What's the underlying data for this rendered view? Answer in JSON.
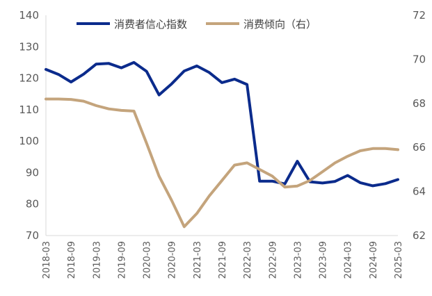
{
  "chart_data": {
    "type": "line",
    "categories": [
      "2018-03",
      "2018-06",
      "2018-09",
      "2018-12",
      "2019-03",
      "2019-06",
      "2019-09",
      "2019-12",
      "2020-03",
      "2020-06",
      "2020-09",
      "2020-12",
      "2021-03",
      "2021-06",
      "2021-09",
      "2021-12",
      "2022-03",
      "2022-06",
      "2022-09",
      "2022-12",
      "2023-03",
      "2023-06",
      "2023-09",
      "2023-12",
      "2024-03",
      "2024-06",
      "2024-09",
      "2024-12",
      "2025-03"
    ],
    "x_tick_labels": [
      "2018-03",
      "2018-09",
      "2019-03",
      "2019-09",
      "2020-03",
      "2020-09",
      "2021-03",
      "2021-09",
      "2022-03",
      "2022-09",
      "2023-03",
      "2023-09",
      "2024-03",
      "2024-09",
      "2025-03"
    ],
    "series": [
      {
        "name": "消费者信心指数",
        "axis": "left",
        "color": "#0b2b8c",
        "values": [
          122.8,
          121.2,
          118.8,
          121.3,
          124.5,
          124.7,
          123.3,
          125.0,
          122.2,
          114.7,
          118.2,
          122.3,
          123.9,
          121.8,
          118.6,
          119.7,
          118.0,
          87.3,
          87.3,
          86.4,
          93.6,
          87.1,
          86.7,
          87.2,
          89.1,
          86.8,
          85.8,
          86.5,
          87.8
        ]
      },
      {
        "name": "消费倾向（右）",
        "axis": "right",
        "color": "#c4a47c",
        "values": [
          68.2,
          68.2,
          68.18,
          68.1,
          67.9,
          67.75,
          67.68,
          67.65,
          66.2,
          64.7,
          63.6,
          62.4,
          63.0,
          63.8,
          64.5,
          65.2,
          65.3,
          65.0,
          64.7,
          64.2,
          64.25,
          64.5,
          64.9,
          65.3,
          65.6,
          65.85,
          65.95,
          65.95,
          65.9
        ]
      }
    ],
    "y_left": {
      "ticks": [
        "70",
        "80",
        "90",
        "100",
        "110",
        "120",
        "130",
        "140"
      ],
      "range": [
        70,
        140
      ]
    },
    "y_right": {
      "ticks": [
        "62",
        "64",
        "66",
        "68",
        "70",
        "72"
      ],
      "range": [
        62,
        72
      ]
    },
    "grid": false,
    "legend": "top-center"
  }
}
